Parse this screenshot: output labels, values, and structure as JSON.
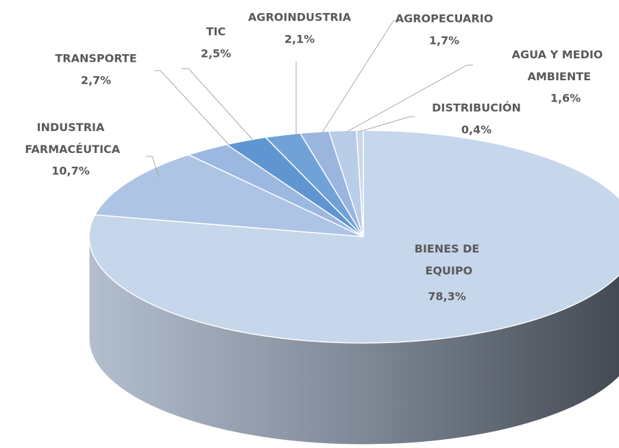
{
  "chart_data": {
    "type": "pie",
    "categories": [
      "BIENES DE EQUIPO",
      "INDUSTRIA FARMACÉUTICA",
      "TRANSPORTE",
      "TIC",
      "AGROINDUSTRIA",
      "AGROPECUARIO",
      "AGUA Y MEDIO AMBIENTE",
      "DISTRIBUCIÓN"
    ],
    "values": [
      78.3,
      10.7,
      2.7,
      2.5,
      2.1,
      1.7,
      1.6,
      0.4
    ],
    "value_labels": [
      "78,3%",
      "10,7%",
      "2,7%",
      "2,5%",
      "2,1%",
      "1,7%",
      "1,6%",
      "0,4%"
    ],
    "colors": [
      "#c6d6eb",
      "#aec4e4",
      "#9cb8e0",
      "#5f96d2",
      "#70a2d8",
      "#9ab6df",
      "#b9cce8",
      "#cad8ec"
    ]
  }
}
